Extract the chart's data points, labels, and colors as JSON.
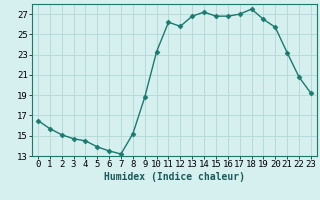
{
  "x": [
    0,
    1,
    2,
    3,
    4,
    5,
    6,
    7,
    8,
    9,
    10,
    11,
    12,
    13,
    14,
    15,
    16,
    17,
    18,
    19,
    20,
    21,
    22,
    23
  ],
  "y": [
    16.5,
    15.7,
    15.1,
    14.7,
    14.5,
    13.9,
    13.5,
    13.2,
    15.2,
    18.8,
    23.3,
    26.2,
    25.8,
    26.8,
    27.2,
    26.8,
    26.8,
    27.0,
    27.5,
    26.5,
    25.7,
    23.2,
    20.8,
    19.2
  ],
  "line_color": "#1a7a6e",
  "marker": "D",
  "marker_size": 2.5,
  "bg_color": "#d6efef",
  "grid_color": "#b2d8d8",
  "xlabel": "Humidex (Indice chaleur)",
  "xlim": [
    -0.5,
    23.5
  ],
  "ylim": [
    13,
    28
  ],
  "yticks": [
    13,
    15,
    17,
    19,
    21,
    23,
    25,
    27
  ],
  "xticks": [
    0,
    1,
    2,
    3,
    4,
    5,
    6,
    7,
    8,
    9,
    10,
    11,
    12,
    13,
    14,
    15,
    16,
    17,
    18,
    19,
    20,
    21,
    22,
    23
  ],
  "xlabel_fontsize": 7,
  "tick_fontsize": 6.5,
  "line_width": 1.0
}
